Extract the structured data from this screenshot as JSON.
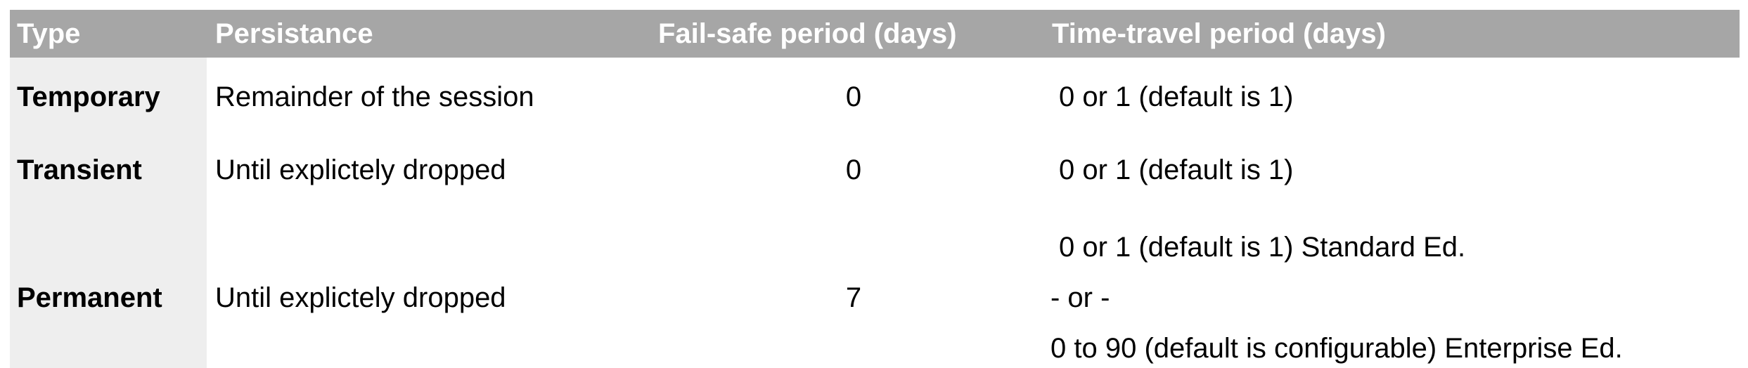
{
  "table": {
    "headers": [
      "Type",
      "Persistance",
      "Fail-safe period (days)",
      "Time-travel period (days)"
    ],
    "rows": [
      {
        "type": "Temporary",
        "persistance": "Remainder of the session",
        "failsafe": "0",
        "timetravel": [
          "0 or 1 (default is 1)"
        ]
      },
      {
        "type": "Transient",
        "persistance": "Until explictely dropped",
        "failsafe": "0",
        "timetravel": [
          "0 or 1 (default is 1)"
        ]
      },
      {
        "type": "Permanent",
        "persistance": "Until explictely dropped",
        "failsafe": "7",
        "timetravel": [
          "0 or 1 (default is 1) Standard Ed.",
          "- or -",
          "0 to 90 (default is configurable) Enterprise Ed."
        ]
      }
    ]
  },
  "colors": {
    "header_bg": "#a6a6a6",
    "header_text": "#ffffff",
    "type_column_bg": "#eeeeee"
  }
}
